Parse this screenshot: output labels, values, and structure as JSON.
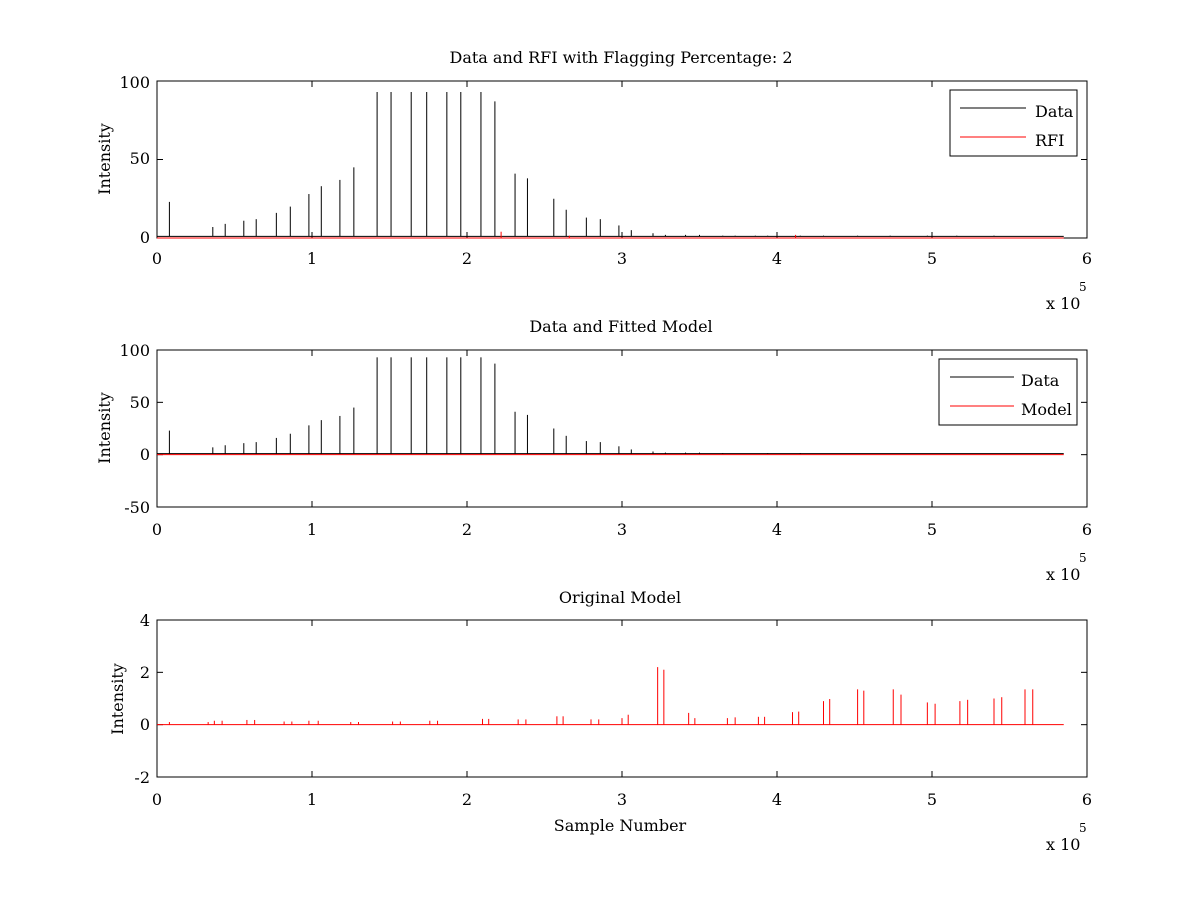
{
  "figure": {
    "background": "#ffffff",
    "axes_color": "#000000"
  },
  "chart_data": [
    {
      "type": "line",
      "title": "Data and RFI with Flagging Percentage: 2",
      "xlabel": "",
      "ylabel": "Intensity",
      "xlim": [
        0,
        600000
      ],
      "ylim": [
        0,
        100
      ],
      "xticks": [
        "0",
        "1",
        "2",
        "3",
        "4",
        "5",
        "6"
      ],
      "yticks": [
        "0",
        "50",
        "100"
      ],
      "x_multiplier": {
        "base": "x 10",
        "power": "5"
      },
      "legend": {
        "position": "top-right",
        "entries": [
          "Data",
          "RFI"
        ]
      },
      "series": [
        {
          "name": "Data",
          "color": "#000000",
          "baseline": 1,
          "peaks": [
            [
              8000,
              23
            ],
            [
              36000,
              7
            ],
            [
              44000,
              9
            ],
            [
              56000,
              11
            ],
            [
              64000,
              12
            ],
            [
              77000,
              16
            ],
            [
              86000,
              20
            ],
            [
              98000,
              28
            ],
            [
              106000,
              33
            ],
            [
              118000,
              37
            ],
            [
              127000,
              45
            ],
            [
              142000,
              93
            ],
            [
              151000,
              93
            ],
            [
              164000,
              93
            ],
            [
              174000,
              93
            ],
            [
              187000,
              93
            ],
            [
              196000,
              93
            ],
            [
              209000,
              93
            ],
            [
              218000,
              87
            ],
            [
              231000,
              41
            ],
            [
              239000,
              38
            ],
            [
              256000,
              25
            ],
            [
              264000,
              18
            ],
            [
              277000,
              13
            ],
            [
              286000,
              12
            ],
            [
              298000,
              8
            ],
            [
              306000,
              5
            ],
            [
              320000,
              3
            ],
            [
              328000,
              2
            ],
            [
              341000,
              2
            ],
            [
              350000,
              2
            ],
            [
              365000,
              1.5
            ],
            [
              373000,
              1.5
            ],
            [
              386000,
              1.5
            ],
            [
              394000,
              1.5
            ],
            [
              415000,
              1.5
            ],
            [
              430000,
              1.5
            ],
            [
              452000,
              1.5
            ],
            [
              473000,
              1.5
            ],
            [
              497000,
              1.5
            ],
            [
              516000,
              1.5
            ],
            [
              540000,
              1.5
            ]
          ]
        },
        {
          "name": "RFI",
          "color": "#ff0000",
          "baseline": 0,
          "peaks": [
            [
              222000,
              4
            ],
            [
              266000,
              1.5
            ],
            [
              412000,
              2
            ]
          ]
        }
      ]
    },
    {
      "type": "line",
      "title": "Data and Fitted Model",
      "xlabel": "",
      "ylabel": "Intensity",
      "xlim": [
        0,
        600000
      ],
      "ylim": [
        -50,
        100
      ],
      "xticks": [
        "0",
        "1",
        "2",
        "3",
        "4",
        "5",
        "6"
      ],
      "yticks": [
        "-50",
        "0",
        "50",
        "100"
      ],
      "x_multiplier": {
        "base": "x 10",
        "power": "5"
      },
      "legend": {
        "position": "top-right",
        "entries": [
          "Data",
          "Model"
        ]
      },
      "series": [
        {
          "name": "Data",
          "color": "#000000",
          "baseline": 1,
          "peaks": [
            [
              8000,
              23
            ],
            [
              36000,
              7
            ],
            [
              44000,
              9
            ],
            [
              56000,
              11
            ],
            [
              64000,
              12
            ],
            [
              77000,
              16
            ],
            [
              86000,
              20
            ],
            [
              98000,
              28
            ],
            [
              106000,
              33
            ],
            [
              118000,
              37
            ],
            [
              127000,
              45
            ],
            [
              142000,
              93
            ],
            [
              151000,
              93
            ],
            [
              164000,
              93
            ],
            [
              174000,
              93
            ],
            [
              187000,
              93
            ],
            [
              196000,
              93
            ],
            [
              209000,
              93
            ],
            [
              218000,
              87
            ],
            [
              231000,
              41
            ],
            [
              239000,
              38
            ],
            [
              256000,
              25
            ],
            [
              264000,
              18
            ],
            [
              277000,
              13
            ],
            [
              286000,
              12
            ],
            [
              298000,
              8
            ],
            [
              306000,
              5
            ],
            [
              320000,
              3
            ],
            [
              328000,
              2
            ],
            [
              341000,
              2
            ],
            [
              350000,
              2
            ],
            [
              365000,
              1.5
            ],
            [
              394000,
              1.5
            ],
            [
              415000,
              1.5
            ]
          ]
        },
        {
          "name": "Model",
          "color": "#ff0000",
          "baseline": 0,
          "peaks": []
        }
      ]
    },
    {
      "type": "line",
      "title": "Original Model",
      "xlabel": "Sample Number",
      "ylabel": "Intensity",
      "xlim": [
        0,
        600000
      ],
      "ylim": [
        -2,
        4
      ],
      "xticks": [
        "0",
        "1",
        "2",
        "3",
        "4",
        "5",
        "6"
      ],
      "yticks": [
        "-2",
        "0",
        "2",
        "4"
      ],
      "x_multiplier": {
        "base": "x 10",
        "power": "5"
      },
      "legend": null,
      "series": [
        {
          "color": "#ff0000",
          "baseline": 0,
          "peaks": [
            [
              8000,
              0.1
            ],
            [
              33000,
              0.1
            ],
            [
              37000,
              0.15
            ],
            [
              42000,
              0.15
            ],
            [
              58000,
              0.18
            ],
            [
              63000,
              0.18
            ],
            [
              82000,
              0.12
            ],
            [
              87000,
              0.12
            ],
            [
              98000,
              0.15
            ],
            [
              104000,
              0.15
            ],
            [
              125000,
              0.1
            ],
            [
              130000,
              0.1
            ],
            [
              152000,
              0.12
            ],
            [
              157000,
              0.12
            ],
            [
              176000,
              0.15
            ],
            [
              181000,
              0.15
            ],
            [
              210000,
              0.22
            ],
            [
              214000,
              0.22
            ],
            [
              233000,
              0.2
            ],
            [
              238000,
              0.2
            ],
            [
              258000,
              0.32
            ],
            [
              262000,
              0.32
            ],
            [
              280000,
              0.2
            ],
            [
              285000,
              0.2
            ],
            [
              300000,
              0.25
            ],
            [
              304000,
              0.38
            ],
            [
              323000,
              2.2
            ],
            [
              327000,
              2.1
            ],
            [
              343000,
              0.45
            ],
            [
              347000,
              0.25
            ],
            [
              368000,
              0.25
            ],
            [
              373000,
              0.28
            ],
            [
              388000,
              0.3
            ],
            [
              392000,
              0.3
            ],
            [
              410000,
              0.48
            ],
            [
              414000,
              0.5
            ],
            [
              430000,
              0.9
            ],
            [
              434000,
              0.98
            ],
            [
              452000,
              1.35
            ],
            [
              456000,
              1.3
            ],
            [
              475000,
              1.35
            ],
            [
              480000,
              1.15
            ],
            [
              497000,
              0.85
            ],
            [
              502000,
              0.8
            ],
            [
              518000,
              0.9
            ],
            [
              523000,
              0.95
            ],
            [
              540000,
              1.0
            ],
            [
              545000,
              1.05
            ],
            [
              560000,
              1.35
            ],
            [
              565000,
              1.35
            ]
          ]
        }
      ]
    }
  ]
}
